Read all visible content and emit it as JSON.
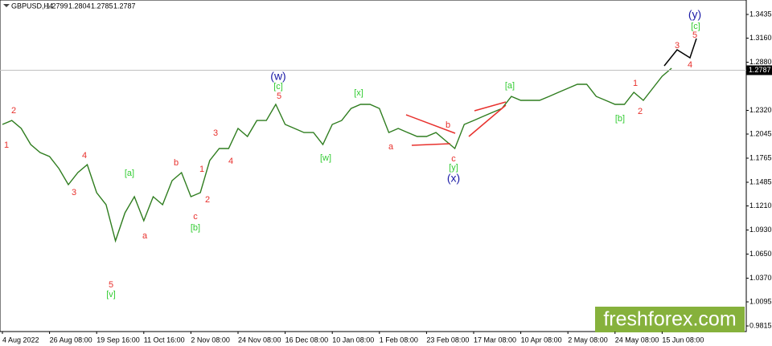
{
  "chart_data": {
    "type": "line",
    "header": {
      "symbol": "GBPUSD,H4",
      "open": 1.2799,
      "high": 1.2804,
      "low": 1.2785,
      "close": 1.2787
    },
    "last_price": 1.2787,
    "color": "#2f7d1f",
    "categories": [
      "4 Aug 2022",
      null,
      null,
      null,
      null,
      "26 Aug 08:00",
      null,
      null,
      null,
      null,
      "19 Sep 16:00",
      null,
      null,
      null,
      null,
      "11 Oct 16:00",
      null,
      null,
      null,
      null,
      "2 Nov 08:00",
      null,
      null,
      null,
      null,
      "24 Nov 08:00",
      null,
      null,
      null,
      null,
      "16 Dec 08:00",
      null,
      null,
      null,
      null,
      "10 Jan 08:00",
      null,
      null,
      null,
      null,
      "1 Feb 08:00",
      null,
      null,
      null,
      null,
      "23 Feb 08:00",
      null,
      null,
      null,
      null,
      "17 Mar 08:00",
      null,
      null,
      null,
      null,
      "10 Apr 08:00",
      null,
      null,
      null,
      null,
      "2 May 08:00",
      null,
      null,
      null,
      null,
      "24 May 08:00",
      null,
      null,
      null,
      null,
      "15 Jun 08:00",
      null
    ],
    "values": [
      1.2157,
      1.2203,
      1.211,
      1.1924,
      1.183,
      1.1784,
      1.1644,
      1.1457,
      1.1597,
      1.169,
      1.1364,
      1.1224,
      1.0804,
      1.113,
      1.1317,
      1.1037,
      1.1317,
      1.1224,
      1.1504,
      1.1597,
      1.1317,
      1.1364,
      1.1737,
      1.1877,
      1.1877,
      1.211,
      1.2017,
      1.2203,
      1.2203,
      1.239,
      1.2157,
      1.211,
      1.2063,
      1.2063,
      1.1924,
      1.2157,
      1.2203,
      1.2343,
      1.239,
      1.239,
      1.2343,
      1.2063,
      1.211,
      1.2063,
      1.2017,
      1.2017,
      1.2063,
      1.197,
      1.1877,
      1.2157,
      1.2203,
      1.225,
      1.2297,
      1.2343,
      1.2483,
      1.2437,
      1.2437,
      1.2437,
      1.2483,
      1.253,
      1.2577,
      1.2623,
      1.2623,
      1.2483,
      1.2437,
      1.239,
      1.239,
      1.253,
      1.2437,
      1.2577,
      1.2717,
      1.281
    ],
    "ylim": [
      0.975,
      1.3603
    ],
    "yticks": [
      1.3435,
      {
        "value": 1.316,
        "label": "1.3160"
      },
      {
        "value": 1.288,
        "label": "1.2880"
      },
      {
        "value": 1.232,
        "label": "1.2320"
      },
      1.2045,
      1.1765,
      1.1485,
      {
        "value": 1.121,
        "label": "1.1210"
      },
      {
        "value": 1.093,
        "label": "1.0930"
      },
      {
        "value": 1.065,
        "label": "1.0650"
      },
      {
        "value": 1.037,
        "label": "1.0370"
      },
      1.0095,
      0.9815
    ],
    "annotations": [
      {
        "text": "1",
        "color": "#e8312d"
      },
      {
        "text": "2",
        "color": "#e8312d"
      },
      {
        "text": "3",
        "color": "#e8312d"
      },
      {
        "text": "4",
        "color": "#e8312d"
      },
      {
        "text": "5",
        "color": "#e8312d"
      },
      {
        "text": "[v]",
        "color": "#33cc33"
      },
      {
        "text": "[a]",
        "color": "#33cc33"
      },
      {
        "text": "a",
        "color": "#e8312d"
      },
      {
        "text": "b",
        "color": "#e8312d"
      },
      {
        "text": "c",
        "color": "#e8312d"
      },
      {
        "text": "[b]",
        "color": "#33cc33"
      },
      {
        "text": "1",
        "color": "#e8312d"
      },
      {
        "text": "2",
        "color": "#e8312d"
      },
      {
        "text": "3",
        "color": "#e8312d"
      },
      {
        "text": "4",
        "color": "#e8312d"
      },
      {
        "text": "(w)",
        "color": "#1a1aa6"
      },
      {
        "text": "[c]",
        "color": "#33cc33"
      },
      {
        "text": "5",
        "color": "#e8312d"
      },
      {
        "text": "[w]",
        "color": "#33cc33"
      },
      {
        "text": "[x]",
        "color": "#33cc33"
      },
      {
        "text": "a",
        "color": "#e8312d"
      },
      {
        "text": "b",
        "color": "#e8312d"
      },
      {
        "text": "c",
        "color": "#e8312d"
      },
      {
        "text": "[y]",
        "color": "#33cc33"
      },
      {
        "text": "(x)",
        "color": "#1a1aa6"
      },
      {
        "text": "[a]",
        "color": "#33cc33"
      },
      {
        "text": "1",
        "color": "#e8312d"
      },
      {
        "text": "2",
        "color": "#e8312d"
      },
      {
        "text": "[b]",
        "color": "#33cc33"
      },
      {
        "text": "3",
        "color": "#e8312d"
      },
      {
        "text": "4",
        "color": "#e8312d"
      },
      {
        "text": "5",
        "color": "#e8312d"
      },
      {
        "text": "[c]",
        "color": "#33cc33"
      },
      {
        "text": "(y)",
        "color": "#1a1aa6"
      }
    ],
    "watermark": "freshforex.com"
  }
}
